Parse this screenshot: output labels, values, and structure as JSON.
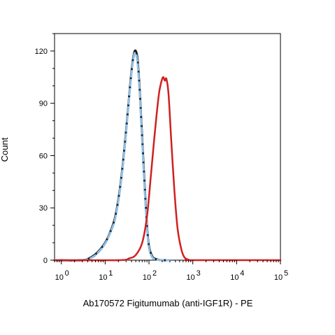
{
  "chart_data": {
    "type": "line",
    "xlabel": "Ab170572 Figitumumab (anti-IGF1R) - PE",
    "ylabel": "Count",
    "x_scale": "log",
    "xlim": [
      0.7,
      100000
    ],
    "ylim": [
      0,
      130
    ],
    "x_ticks": [
      1,
      10,
      100,
      1000,
      10000,
      100000
    ],
    "x_tick_labels": [
      {
        "base": "10",
        "exp": "0"
      },
      {
        "base": "10",
        "exp": "1"
      },
      {
        "base": "10",
        "exp": "2"
      },
      {
        "base": "10",
        "exp": "3"
      },
      {
        "base": "10",
        "exp": "4"
      },
      {
        "base": "10",
        "exp": "5"
      }
    ],
    "y_ticks": [
      0,
      30,
      60,
      90,
      120
    ],
    "y_tick_labels": [
      "0",
      "30",
      "60",
      "90",
      "120"
    ],
    "grid": false,
    "legend": "none",
    "series": [
      {
        "color": "#1a1a1a",
        "dash": "none",
        "width": 3,
        "x": [
          0.7,
          3,
          5,
          7,
          10,
          13,
          17,
          22,
          27,
          32,
          37,
          42,
          46,
          50,
          55,
          62,
          70,
          80,
          90,
          100,
          120,
          150,
          200,
          300
        ],
        "y": [
          0,
          0,
          2,
          5,
          10,
          16,
          25,
          42,
          62,
          82,
          100,
          113,
          119,
          120,
          115,
          96,
          70,
          42,
          20,
          8,
          2,
          0.5,
          0,
          0
        ]
      },
      {
        "color": "#8ec0e8",
        "dash": "8,5",
        "width": 3,
        "x": [
          0.7,
          3,
          5,
          7,
          10,
          13,
          17,
          22,
          27,
          32,
          37,
          42,
          46,
          50,
          55,
          62,
          70,
          80,
          90,
          100,
          120,
          150,
          200,
          300
        ],
        "y": [
          0,
          0,
          1.5,
          4.5,
          9.5,
          15.5,
          24,
          41,
          61,
          81,
          99,
          112,
          118,
          118.5,
          113,
          94,
          68,
          40,
          19,
          7,
          1.5,
          0.3,
          0,
          0
        ]
      },
      {
        "color": "#d0201f",
        "dash": "none",
        "width": 2.5,
        "x": [
          0.7,
          20,
          35,
          50,
          70,
          90,
          110,
          130,
          150,
          170,
          190,
          210,
          230,
          250,
          280,
          320,
          380,
          450,
          550,
          650,
          800,
          1000,
          100000
        ],
        "y": [
          0,
          0,
          1,
          3,
          10,
          25,
          48,
          68,
          84,
          96,
          102,
          105,
          103,
          104,
          95,
          70,
          40,
          18,
          6,
          1.5,
          0.3,
          0,
          0
        ]
      }
    ]
  }
}
